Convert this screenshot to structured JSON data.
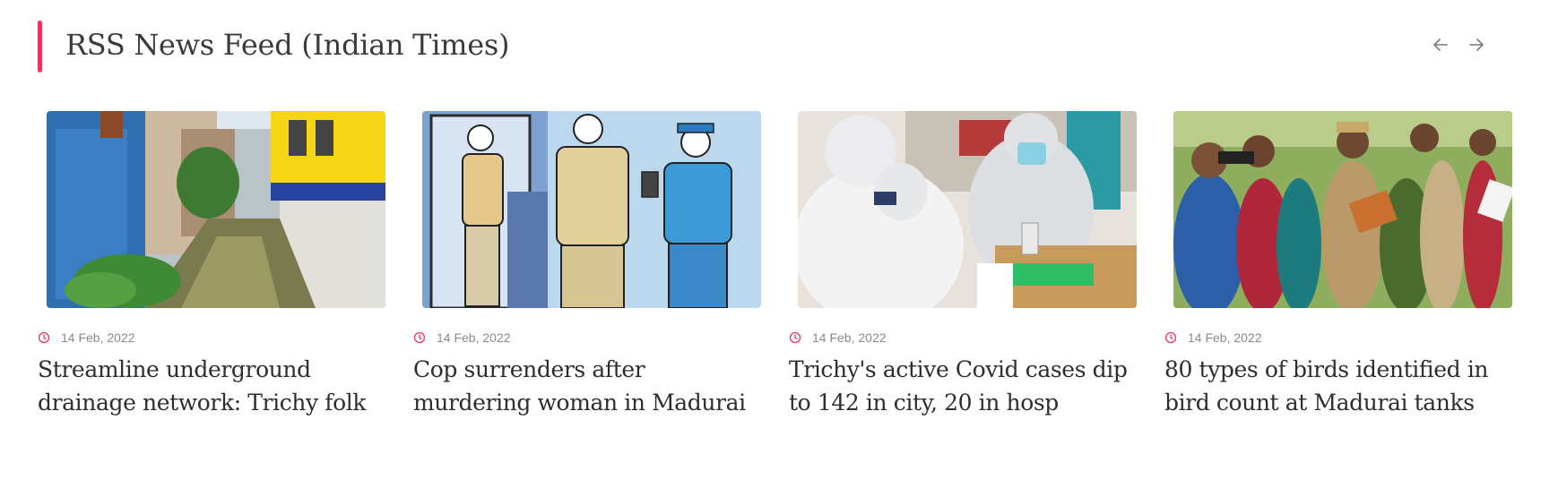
{
  "section": {
    "title": "RSS News Feed (Indian Times)",
    "accent_color": "#e8365e",
    "prev_icon": "arrow-left-icon",
    "next_icon": "arrow-right-icon"
  },
  "articles": [
    {
      "date": "14 Feb, 2022",
      "headline": "Streamline underground drainage network: Trichy folk",
      "image": "drainage-canal-photo"
    },
    {
      "date": "14 Feb, 2022",
      "headline": "Cop surrenders after murdering woman in Madurai",
      "image": "police-illustration"
    },
    {
      "date": "14 Feb, 2022",
      "headline": "Trichy's active Covid cases dip to 142 in city, 20 in hosp",
      "image": "covid-health-workers-photo"
    },
    {
      "date": "14 Feb, 2022",
      "headline": "80 types of birds identified in bird count at Madurai tanks",
      "image": "bird-watchers-photo"
    }
  ]
}
